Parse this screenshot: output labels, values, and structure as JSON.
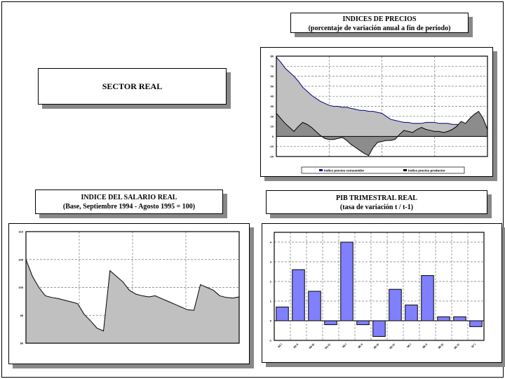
{
  "sector_title": "SECTOR REAL",
  "chart_data": [
    {
      "id": "precios",
      "type": "area",
      "title": "INDICES DE PRECIOS",
      "subtitle": "(porcentaje de variación anual a fin de período)",
      "ylim": [
        -20,
        80
      ],
      "yticks": [
        -20,
        -10,
        0,
        10,
        20,
        30,
        40,
        50,
        60,
        70,
        80
      ],
      "grid": true,
      "legend": "bottom",
      "series": [
        {
          "name": "Indice precios consumidor",
          "color": "#c0c0c0",
          "line": "#000080",
          "values": [
            79,
            74,
            68,
            64,
            60,
            55,
            49,
            45,
            41,
            38,
            35,
            33,
            31,
            30,
            30,
            29,
            29,
            28,
            27,
            26,
            26,
            25,
            25,
            24,
            23,
            20,
            17,
            16,
            15,
            14,
            14,
            13,
            13,
            13,
            14,
            14,
            14,
            13,
            13,
            13,
            12,
            12,
            11,
            11,
            10,
            9,
            9,
            8,
            0
          ]
        },
        {
          "name": "Indice precios productor",
          "color": "#8c8c8c",
          "line": "#000000",
          "values": [
            23,
            18,
            13,
            9,
            5,
            10,
            14,
            12,
            9,
            5,
            1,
            -2,
            -3,
            -3,
            -2,
            -1,
            -4,
            -8,
            -11,
            -14,
            -17,
            -19,
            -11,
            -6,
            -5,
            -4,
            -4,
            -3,
            2,
            6,
            5,
            4,
            7,
            9,
            7,
            6,
            5,
            5,
            4,
            5,
            7,
            10,
            15,
            13,
            18,
            22,
            25,
            18,
            7
          ]
        }
      ]
    },
    {
      "id": "salario",
      "type": "area",
      "title": "INDICE DEL SALARIO REAL",
      "subtitle": "(Base, Septiembre 1994 - Agosto 1995 = 100)",
      "ylim": [
        90,
        110
      ],
      "yticks": [
        90,
        95,
        100,
        105,
        110
      ],
      "grid": true,
      "series": [
        {
          "color": "#c0c0c0",
          "line": "#000000",
          "values": [
            105,
            102,
            100,
            98.5,
            98.2,
            98,
            97.7,
            97.4,
            97.1,
            95.2,
            94,
            92.7,
            92.2,
            103,
            102,
            101,
            99.5,
            98.8,
            98.5,
            98.3,
            98.5,
            98,
            97.5,
            97,
            96.5,
            96,
            95.9,
            100.5,
            100,
            99.5,
            98.5,
            98.2,
            98.1,
            98.3
          ]
        }
      ]
    },
    {
      "id": "pib",
      "type": "bar",
      "title": "PIB TRIMESTRAL REAL",
      "subtitle": "(tasa de variación  t / t-1)",
      "ylim": [
        -1,
        4.5
      ],
      "yticks": [
        -1,
        0,
        1,
        2,
        3,
        4
      ],
      "grid": true,
      "color": "#8080ff",
      "categories": [
        "94 I",
        "94 II",
        "94 III",
        "94 IV",
        "95 I",
        "95 II",
        "95 III",
        "95 IV",
        "96 I",
        "96 II",
        "96 III",
        "96 IV",
        "97 I"
      ],
      "values": [
        0.7,
        2.6,
        1.5,
        -0.2,
        4.0,
        -0.2,
        -0.8,
        1.6,
        0.8,
        2.3,
        0.2,
        0.2,
        -0.3
      ]
    }
  ]
}
